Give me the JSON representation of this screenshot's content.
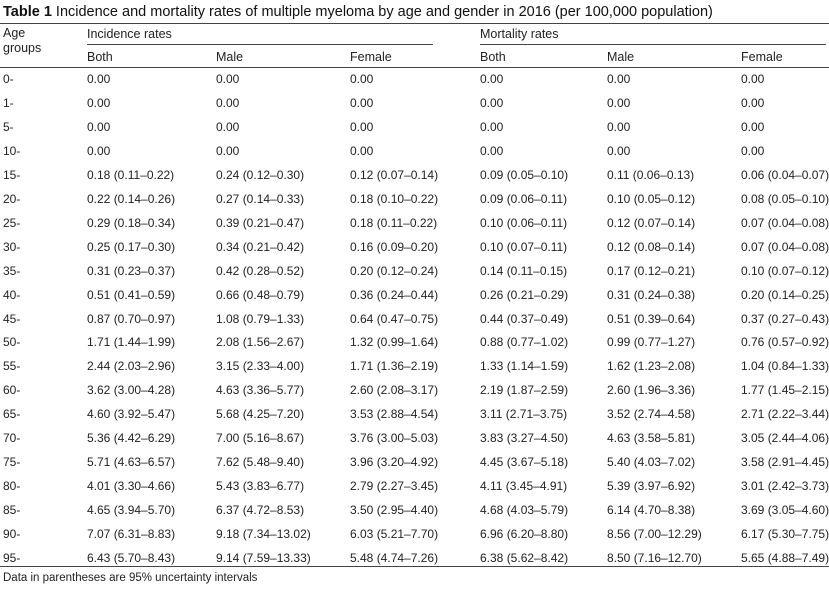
{
  "caption": {
    "label": "Table 1",
    "text": "Incidence and mortality rates of multiple myeloma by age and gender in 2016 (per 100,000 population)"
  },
  "table": {
    "age_header_line1": "Age",
    "age_header_line2": "groups",
    "groups": [
      "Incidence rates",
      "Mortality rates"
    ],
    "subheaders": [
      "Both",
      "Male",
      "Female",
      "Both",
      "Male",
      "Female"
    ],
    "rows": [
      {
        "age": "0-",
        "values": [
          "0.00",
          "0.00",
          "0.00",
          "0.00",
          "0.00",
          "0.00"
        ]
      },
      {
        "age": "1-",
        "values": [
          "0.00",
          "0.00",
          "0.00",
          "0.00",
          "0.00",
          "0.00"
        ]
      },
      {
        "age": "5-",
        "values": [
          "0.00",
          "0.00",
          "0.00",
          "0.00",
          "0.00",
          "0.00"
        ]
      },
      {
        "age": "10-",
        "values": [
          "0.00",
          "0.00",
          "0.00",
          "0.00",
          "0.00",
          "0.00"
        ]
      },
      {
        "age": "15-",
        "values": [
          "0.18 (0.11–0.22)",
          "0.24 (0.12–0.30)",
          "0.12 (0.07–0.14)",
          "0.09 (0.05–0.10)",
          "0.11 (0.06–0.13)",
          "0.06 (0.04–0.07)"
        ]
      },
      {
        "age": "20-",
        "values": [
          "0.22 (0.14–0.26)",
          "0.27 (0.14–0.33)",
          "0.18 (0.10–0.22)",
          "0.09 (0.06–0.11)",
          "0.10 (0.05–0.12)",
          "0.08 (0.05–0.10)"
        ]
      },
      {
        "age": "25-",
        "values": [
          "0.29 (0.18–0.34)",
          "0.39 (0.21–0.47)",
          "0.18 (0.11–0.22)",
          "0.10 (0.06–0.11)",
          "0.12 (0.07–0.14)",
          "0.07 (0.04–0.08)"
        ]
      },
      {
        "age": "30-",
        "values": [
          "0.25 (0.17–0.30)",
          "0.34 (0.21–0.42)",
          "0.16 (0.09–0.20)",
          "0.10 (0.07–0.11)",
          "0.12 (0.08–0.14)",
          "0.07 (0.04–0.08)"
        ]
      },
      {
        "age": "35-",
        "values": [
          "0.31 (0.23–0.37)",
          "0.42 (0.28–0.52)",
          "0.20 (0.12–0.24)",
          "0.14 (0.11–0.15)",
          "0.17 (0.12–0.21)",
          "0.10 (0.07–0.12)"
        ]
      },
      {
        "age": "40-",
        "values": [
          "0.51 (0.41–0.59)",
          "0.66 (0.48–0.79)",
          "0.36 (0.24–0.44)",
          "0.26 (0.21–0.29)",
          "0.31 (0.24–0.38)",
          "0.20 (0.14–0.25)"
        ]
      },
      {
        "age": "45-",
        "values": [
          "0.87 (0.70–0.97)",
          "1.08 (0.79–1.33)",
          "0.64 (0.47–0.75)",
          "0.44 (0.37–0.49)",
          "0.51 (0.39–0.64)",
          "0.37 (0.27–0.43)"
        ]
      },
      {
        "age": "50-",
        "values": [
          "1.71 (1.44–1.99)",
          "2.08 (1.56–2.67)",
          "1.32 (0.99–1.64)",
          "0.88 (0.77–1.02)",
          "0.99 (0.77–1.27)",
          "0.76 (0.57–0.92)"
        ]
      },
      {
        "age": "55-",
        "values": [
          "2.44 (2.03–2.96)",
          "3.15 (2.33–4.00)",
          "1.71 (1.36–2.19)",
          "1.33 (1.14–1.59)",
          "1.62 (1.23–2.08)",
          "1.04 (0.84–1.33)"
        ]
      },
      {
        "age": "60-",
        "values": [
          "3.62 (3.00–4.28)",
          "4.63 (3.36–5.77)",
          "2.60 (2.08–3.17)",
          "2.19 (1.87–2.59)",
          "2.60 (1.96–3.36)",
          "1.77 (1.45–2.15)"
        ]
      },
      {
        "age": "65-",
        "values": [
          "4.60 (3.92–5.47)",
          "5.68 (4.25–7.20)",
          "3.53 (2.88–4.54)",
          "3.11 (2.71–3.75)",
          "3.52 (2.74–4.58)",
          "2.71 (2.22–3.44)"
        ]
      },
      {
        "age": "70-",
        "values": [
          "5.36 (4.42–6.29)",
          "7.00 (5.16–8.67)",
          "3.76 (3.00–5.03)",
          "3.83 (3.27–4.50)",
          "4.63 (3.58–5.81)",
          "3.05 (2.44–4.06)"
        ]
      },
      {
        "age": "75-",
        "values": [
          "5.71 (4.63–6.57)",
          "7.62 (5.48–9.40)",
          "3.96 (3.20–4.92)",
          "4.45 (3.67–5.18)",
          "5.40 (4.03–7.02)",
          "3.58 (2.91–4.45)"
        ]
      },
      {
        "age": "80-",
        "values": [
          "4.01 (3.30–4.66)",
          "5.43 (3.83–6.77)",
          "2.79 (2.27–3.45)",
          "4.11 (3.45–4.91)",
          "5.39 (3.97–6.92)",
          "3.01 (2.42–3.73)"
        ]
      },
      {
        "age": "85-",
        "values": [
          "4.65 (3.94–5.70)",
          "6.37 (4.72–8.53)",
          "3.50 (2.95–4.40)",
          "4.68 (4.03–5.79)",
          "6.14 (4.70–8.38)",
          "3.69 (3.05–4.60)"
        ]
      },
      {
        "age": "90-",
        "values": [
          "7.07 (6.31–8.83)",
          "9.18 (7.34–13.02)",
          "6.03 (5.21–7.70)",
          "6.96 (6.20–8.80)",
          "8.56 (7.00–12.29)",
          "6.17 (5.30–7.75)"
        ]
      },
      {
        "age": "95-",
        "values": [
          "6.43 (5.70–8.43)",
          "9.14 (7.59–13.33)",
          "5.48 (4.74–7.26)",
          "6.38 (5.62–8.42)",
          "8.50 (7.16–12.70)",
          "5.65 (4.88–7.49)"
        ]
      }
    ]
  },
  "footnote": "Data in parentheses are 95% uncertainty intervals"
}
